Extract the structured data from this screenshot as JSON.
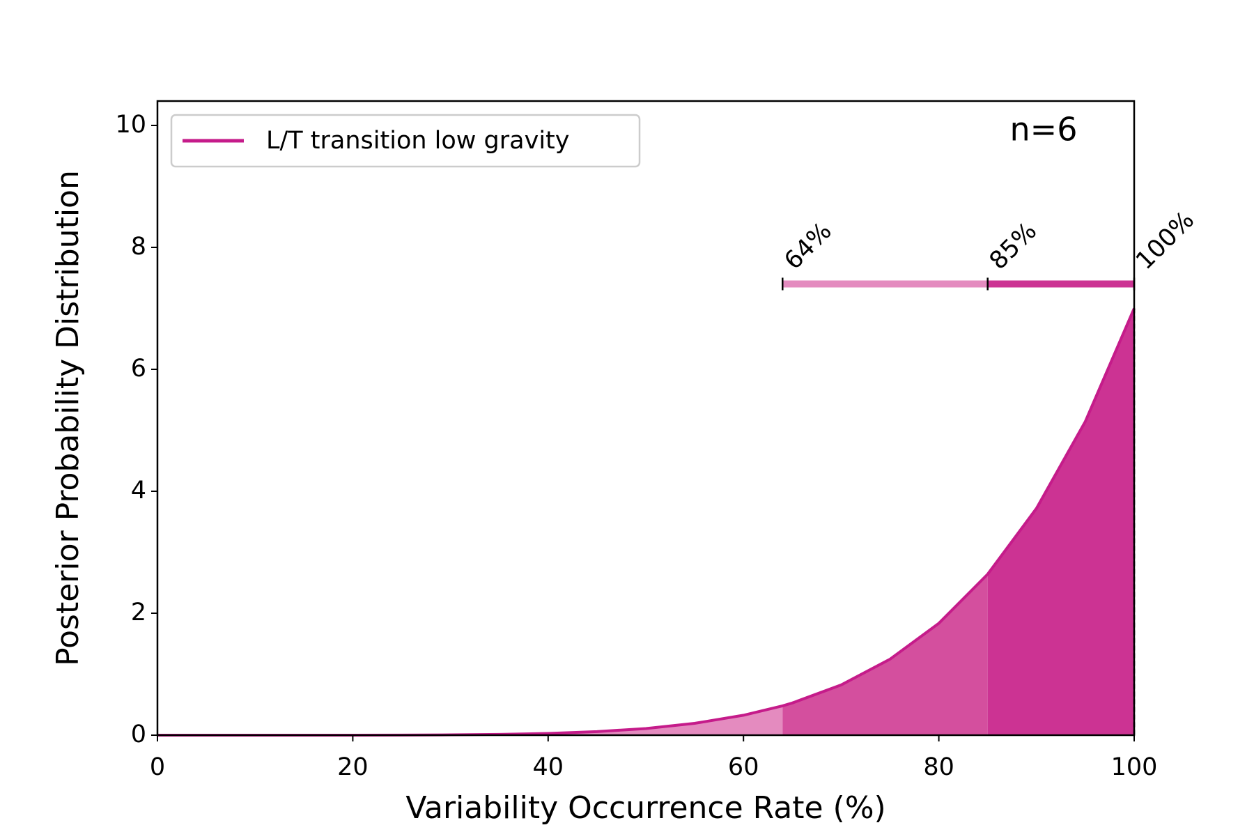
{
  "chart_data": {
    "type": "line",
    "x_label": "Variability Occurrence Rate (%)",
    "y_label": "Posterior Probability Distribution",
    "annotation": "n=6",
    "x": [
      0,
      5,
      10,
      15,
      20,
      25,
      30,
      35,
      40,
      45,
      50,
      55,
      60,
      64,
      65,
      70,
      75,
      80,
      85,
      90,
      95,
      100
    ],
    "series": [
      {
        "name": "L/T transition low gravity",
        "color": "#c51b8a",
        "values": [
          0,
          0,
          1e-05,
          8e-05,
          0.00045,
          0.0017,
          0.0051,
          0.0129,
          0.0287,
          0.0581,
          0.109,
          0.194,
          0.327,
          0.481,
          0.528,
          0.824,
          1.246,
          1.835,
          2.64,
          3.72,
          5.145,
          7
        ]
      }
    ],
    "bounds": [
      {
        "value": 64,
        "label": "64%"
      },
      {
        "value": 85,
        "label": "85%"
      },
      {
        "value": 100,
        "label": "100%"
      }
    ],
    "shade_colors": [
      "#e48bbf",
      "#d44f9e",
      "#cc3393"
    ],
    "bar_y": 7.4,
    "xlim": [
      0,
      100
    ],
    "xticks": [
      0,
      20,
      40,
      60,
      80,
      100
    ],
    "ylim": [
      0,
      10.4
    ],
    "yticks": [
      0,
      2,
      4,
      6,
      8,
      10
    ],
    "legend": "upper left"
  }
}
